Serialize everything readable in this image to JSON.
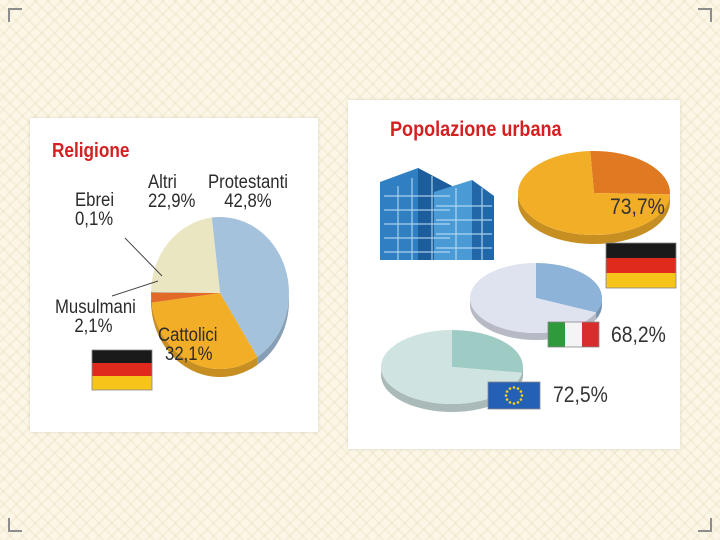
{
  "colors": {
    "protestanti": "#a5c2dc",
    "cattolici": "#f3ae28",
    "altri": "#ebe6c2",
    "musulmani": "#e26a28",
    "ebrei": "#7c6c50",
    "title_red": "#d42020"
  },
  "chart_data": [
    {
      "type": "pie",
      "title": "Religione",
      "slices": [
        {
          "label": "Protestanti",
          "value": 42.8,
          "value_label": "42,8%",
          "color": "#a5c2dc"
        },
        {
          "label": "Cattolici",
          "value": 32.1,
          "value_label": "32,1%",
          "color": "#f3ae28"
        },
        {
          "label": "Musulmani",
          "value": 2.1,
          "value_label": "2,1%",
          "color": "#e26a28"
        },
        {
          "label": "Ebrei",
          "value": 0.1,
          "value_label": "0,1%",
          "color": "#7c6c50"
        },
        {
          "label": "Altri",
          "value": 22.9,
          "value_label": "22,9%",
          "color": "#ebe6c2"
        }
      ],
      "flag": "germany-flag"
    },
    {
      "type": "pie",
      "title": "Popolazione urbana",
      "pies": [
        {
          "flag": "germany-flag",
          "value": 73.7,
          "value_label": "73,7%",
          "color": "#f3ae28",
          "rest_color": "#e07a22"
        },
        {
          "flag": "italy-flag",
          "value": 68.2,
          "value_label": "68,2%",
          "color": "#dfe3ef",
          "rest_color": "#8db3d8"
        },
        {
          "flag": "eu-flag",
          "value": 72.5,
          "value_label": "72,5%",
          "color": "#cfe3e0",
          "rest_color": "#9fcbc5"
        }
      ]
    }
  ],
  "icons": [
    "germany-flag",
    "italy-flag",
    "eu-flag",
    "building-icon"
  ]
}
